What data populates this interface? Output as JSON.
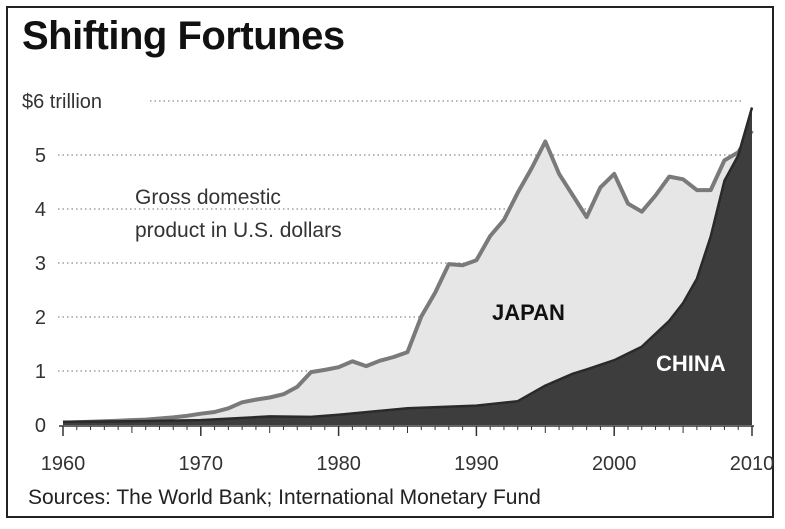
{
  "chart_data": {
    "type": "area",
    "title": "Shifting Fortunes",
    "note": [
      "Gross domestic",
      "product in U.S. dollars"
    ],
    "source": "Sources: The World Bank; International Monetary Fund",
    "xlim": [
      1960,
      2010
    ],
    "ylim": [
      0,
      6
    ],
    "x_ticks": [
      1960,
      1970,
      1980,
      1990,
      2000,
      2010
    ],
    "y_ticks": [
      {
        "value": 0,
        "label": "0"
      },
      {
        "value": 1,
        "label": "1"
      },
      {
        "value": 2,
        "label": "2"
      },
      {
        "value": 3,
        "label": "3"
      },
      {
        "value": 4,
        "label": "4"
      },
      {
        "value": 5,
        "label": "5"
      },
      {
        "value": 6,
        "label": "$6 trillion"
      }
    ],
    "grid": "horizontal dotted",
    "series": [
      {
        "name": "JAPAN",
        "fill": "#e6e6e6",
        "line": "#7a7a7a",
        "x": [
          1960,
          1961,
          1962,
          1963,
          1964,
          1965,
          1966,
          1967,
          1968,
          1969,
          1970,
          1971,
          1972,
          1973,
          1974,
          1975,
          1976,
          1977,
          1978,
          1979,
          1980,
          1981,
          1982,
          1983,
          1984,
          1985,
          1986,
          1987,
          1988,
          1989,
          1990,
          1991,
          1992,
          1993,
          1994,
          1995,
          1996,
          1997,
          1998,
          1999,
          2000,
          2001,
          2002,
          2003,
          2004,
          2005,
          2006,
          2007,
          2008,
          2009,
          2010
        ],
        "values": [
          0.04,
          0.05,
          0.06,
          0.07,
          0.08,
          0.09,
          0.1,
          0.12,
          0.14,
          0.17,
          0.21,
          0.24,
          0.31,
          0.42,
          0.47,
          0.51,
          0.57,
          0.71,
          0.98,
          1.02,
          1.07,
          1.18,
          1.09,
          1.19,
          1.26,
          1.35,
          2.01,
          2.45,
          2.98,
          2.96,
          3.05,
          3.5,
          3.8,
          4.3,
          4.75,
          5.25,
          4.65,
          4.25,
          3.85,
          4.4,
          4.65,
          4.1,
          3.95,
          4.25,
          4.6,
          4.55,
          4.35,
          4.35,
          4.9,
          5.05,
          5.45
        ]
      },
      {
        "name": "CHINA",
        "fill": "#3d3d3d",
        "line": "#2a2a2a",
        "x": [
          1960,
          1965,
          1970,
          1975,
          1978,
          1980,
          1985,
          1990,
          1993,
          1995,
          1997,
          1998,
          2000,
          2002,
          2004,
          2005,
          2006,
          2007,
          2008,
          2009,
          2010
        ],
        "values": [
          0.06,
          0.07,
          0.09,
          0.16,
          0.15,
          0.19,
          0.31,
          0.36,
          0.44,
          0.73,
          0.95,
          1.03,
          1.2,
          1.45,
          1.93,
          2.26,
          2.71,
          3.49,
          4.52,
          4.99,
          5.88
        ]
      }
    ]
  }
}
